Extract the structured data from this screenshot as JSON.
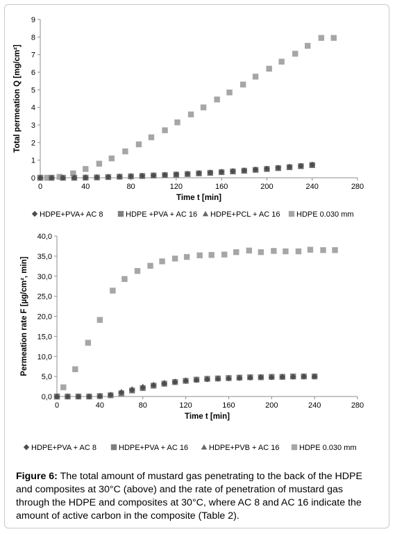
{
  "chart_data": [
    {
      "type": "scatter",
      "title": "",
      "xlabel": "Time t [min]",
      "ylabel": "Total permeation Q [mg/cm²]",
      "xlim": [
        0,
        280
      ],
      "ylim": [
        0,
        9
      ],
      "xticks": [
        "0",
        "40",
        "80",
        "120",
        "160",
        "200",
        "240",
        "280"
      ],
      "yticks": [
        "0",
        "1",
        "2",
        "3",
        "4",
        "5",
        "6",
        "7",
        "8",
        "9"
      ],
      "legend_position": "bottom",
      "series": [
        {
          "name": "HDPE+PVA+ AC 8",
          "marker": "diamond",
          "color": "#4d4d4d",
          "x": [
            0,
            10,
            20,
            30,
            40,
            50,
            60,
            70,
            80,
            90,
            100,
            110,
            120,
            130,
            140,
            150,
            160,
            170,
            180,
            190,
            200,
            210,
            220,
            230,
            240
          ],
          "y": [
            0,
            0,
            0,
            0.01,
            0.02,
            0.03,
            0.05,
            0.07,
            0.09,
            0.12,
            0.14,
            0.17,
            0.2,
            0.23,
            0.27,
            0.3,
            0.34,
            0.38,
            0.42,
            0.47,
            0.52,
            0.57,
            0.63,
            0.68,
            0.75
          ]
        },
        {
          "name": "HDPE +PVA + AC 16",
          "marker": "square",
          "color": "#7f7f7f",
          "x": [
            0,
            10,
            20,
            30,
            40,
            50,
            60,
            70,
            80,
            90,
            100,
            110,
            120,
            130,
            140,
            150,
            160,
            170,
            180,
            190,
            200,
            210,
            220,
            230,
            240
          ],
          "y": [
            0,
            0,
            0,
            0,
            0.01,
            0.02,
            0.04,
            0.06,
            0.08,
            0.1,
            0.13,
            0.15,
            0.18,
            0.21,
            0.25,
            0.28,
            0.32,
            0.36,
            0.4,
            0.45,
            0.5,
            0.55,
            0.6,
            0.66,
            0.72
          ]
        },
        {
          "name": "HDPE+PCL + AC 16",
          "marker": "triangle",
          "color": "#666666",
          "x": [
            0,
            10,
            20,
            30,
            40,
            50,
            60,
            70,
            80,
            90,
            100,
            110,
            120,
            130,
            140,
            150,
            160,
            170,
            180,
            190,
            200,
            210,
            220,
            230,
            240
          ],
          "y": [
            0,
            0,
            0,
            0,
            0.01,
            0.02,
            0.04,
            0.06,
            0.08,
            0.1,
            0.13,
            0.15,
            0.18,
            0.21,
            0.25,
            0.28,
            0.32,
            0.36,
            0.4,
            0.45,
            0.5,
            0.55,
            0.6,
            0.66,
            0.72
          ]
        },
        {
          "name": "HDPE 0.030 mm",
          "marker": "square",
          "color": "#a6a6a6",
          "x": [
            0,
            6,
            17,
            29,
            40,
            52,
            63,
            75,
            87,
            98,
            110,
            121,
            133,
            144,
            156,
            167,
            179,
            190,
            202,
            213,
            225,
            236,
            248,
            259
          ],
          "y": [
            0,
            0,
            0.05,
            0.25,
            0.5,
            0.8,
            1.1,
            1.5,
            1.9,
            2.3,
            2.7,
            3.15,
            3.6,
            4.0,
            4.45,
            4.85,
            5.3,
            5.75,
            6.2,
            6.6,
            7.05,
            7.5,
            7.95,
            7.95
          ]
        }
      ]
    },
    {
      "type": "scatter",
      "title": "",
      "xlabel": "Time t [min]",
      "ylabel": "Permeation rate F [µg/cm², min]",
      "xlim": [
        0,
        280
      ],
      "ylim": [
        0,
        40
      ],
      "xticks": [
        "0",
        "40",
        "80",
        "120",
        "160",
        "200",
        "240",
        "280"
      ],
      "yticks": [
        "0,0",
        "5,0",
        "10,0",
        "15,0",
        "20,0",
        "25,0",
        "30,0",
        "35,0",
        "40,0"
      ],
      "legend_position": "bottom",
      "series": [
        {
          "name": "HDPE+PVA + AC 8",
          "marker": "diamond",
          "color": "#4d4d4d",
          "x": [
            0,
            10,
            20,
            30,
            40,
            50,
            60,
            70,
            80,
            90,
            100,
            110,
            120,
            130,
            140,
            150,
            160,
            170,
            180,
            190,
            200,
            210,
            220,
            230,
            240
          ],
          "y": [
            0,
            0,
            0,
            0,
            0.1,
            0.4,
            1.0,
            1.6,
            2.2,
            2.8,
            3.2,
            3.6,
            3.9,
            4.1,
            4.3,
            4.4,
            4.5,
            4.6,
            4.7,
            4.8,
            4.8,
            4.9,
            4.9,
            5.0,
            5.0
          ]
        },
        {
          "name": "HDPE+PVA + AC 16",
          "marker": "square",
          "color": "#7f7f7f",
          "x": [
            0,
            10,
            20,
            30,
            40,
            50,
            60,
            70,
            80,
            90,
            100,
            110,
            120,
            130,
            140,
            150,
            160,
            170,
            180,
            190,
            200,
            210,
            220,
            230,
            240
          ],
          "y": [
            0,
            0,
            0,
            0,
            0.1,
            0.3,
            0.8,
            1.5,
            2.1,
            2.7,
            3.2,
            3.6,
            3.9,
            4.2,
            4.4,
            4.5,
            4.6,
            4.7,
            4.8,
            4.8,
            4.9,
            4.9,
            5.0,
            5.0,
            5.0
          ]
        },
        {
          "name": "HDPE+PVB + AC 16",
          "marker": "triangle",
          "color": "#666666",
          "x": [
            0,
            10,
            20,
            30,
            40,
            50,
            60,
            70,
            80,
            90,
            100,
            110,
            120,
            130,
            140,
            150,
            160,
            170,
            180,
            190,
            200,
            210,
            220,
            230,
            240
          ],
          "y": [
            0,
            0,
            0,
            0,
            0.2,
            0.5,
            1.2,
            1.9,
            2.5,
            3.0,
            3.5,
            3.8,
            4.1,
            4.3,
            4.5,
            4.6,
            4.7,
            4.8,
            4.8,
            4.9,
            4.9,
            5.0,
            5.0,
            5.0,
            5.1
          ]
        },
        {
          "name": "HDPE 0.030 mm",
          "marker": "square",
          "color": "#a6a6a6",
          "x": [
            0,
            6,
            17,
            29,
            40,
            52,
            63,
            75,
            87,
            98,
            110,
            121,
            133,
            144,
            156,
            167,
            179,
            190,
            202,
            213,
            225,
            236,
            248,
            259
          ],
          "y": [
            0,
            2.3,
            6.8,
            13.4,
            19.1,
            26.4,
            29.3,
            31.3,
            32.6,
            33.7,
            34.4,
            34.8,
            35.2,
            35.3,
            35.4,
            36.0,
            36.4,
            36.0,
            36.3,
            36.2,
            36.2,
            36.6,
            36.5,
            36.5
          ]
        }
      ]
    }
  ],
  "caption": {
    "label": "Figure 6:",
    "text": " The total amount of mustard gas penetrating to the back of the HDPE and composites at 30°C (above) and the rate of penetration of mustard gas through the HDPE and composites at 30°C, where AC 8 and AC 16 indicate the amount of active carbon in the composite (Table 2)."
  }
}
